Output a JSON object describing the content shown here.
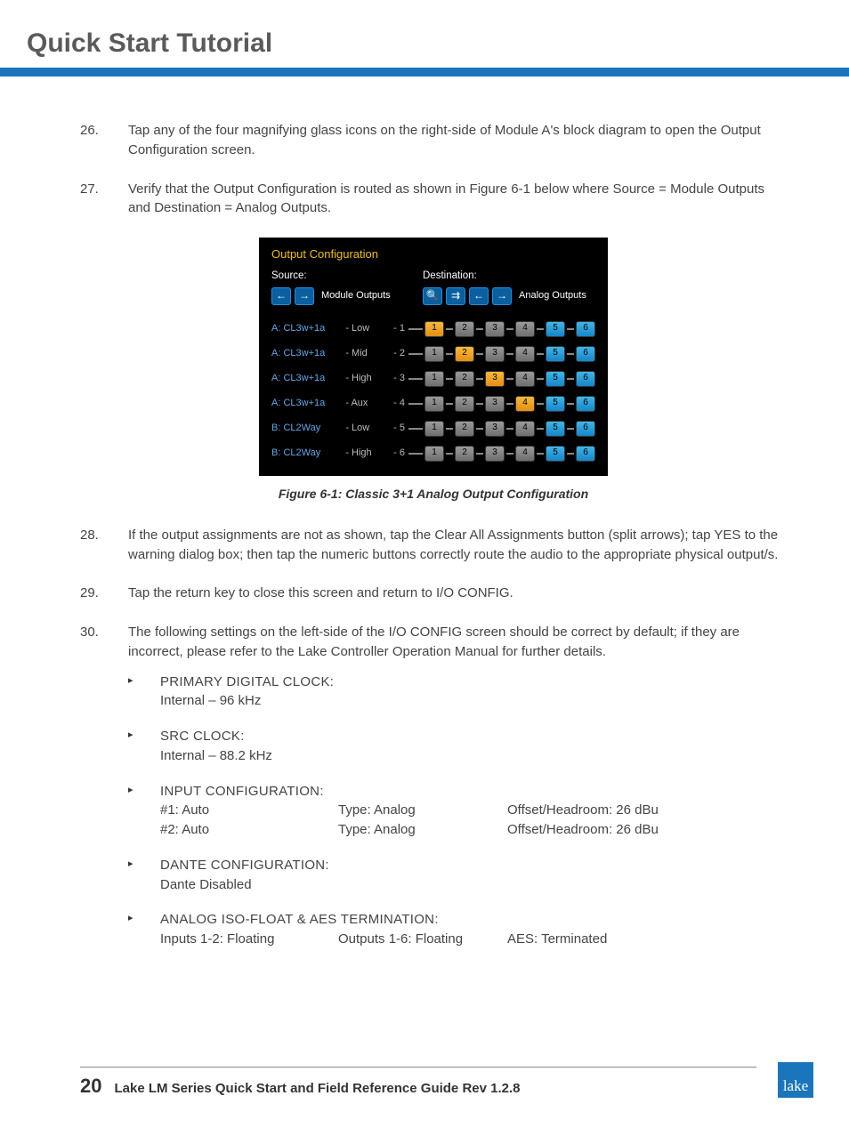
{
  "page": {
    "title": "Quick Start Tutorial",
    "number": "20",
    "footer_title": "Lake LM Series Quick Start and Field Reference Guide Rev 1.2.8",
    "logo_text": "lake"
  },
  "steps": [
    {
      "num": "26.",
      "text": "Tap any of the four magnifying glass icons on the right-side of Module A's block diagram to open the Output Configuration screen."
    },
    {
      "num": "27.",
      "text": "Verify that the Output Configuration is routed as shown in Figure 6-1 below where Source = Module Outputs and Destination = Analog Outputs."
    },
    {
      "num": "28.",
      "text": "If the output assignments are not as shown, tap the Clear All Assignments button (split arrows); tap YES to the warning dialog box; then tap the numeric buttons correctly route the audio to the appropriate physical output/s."
    },
    {
      "num": "29.",
      "text": "Tap the return key to close this screen and return to I/O CONFIG."
    },
    {
      "num": "30.",
      "text": "The following settings on the left-side of the I/O CONFIG screen should be correct by default; if they are incorrect, please refer to the Lake Controller Operation Manual for further details."
    }
  ],
  "figure": {
    "title": "Output Configuration",
    "source_label": "Source:",
    "dest_label": "Destination:",
    "source_text": "Module Outputs",
    "dest_text": "Analog Outputs",
    "caption": "Figure 6-1: Classic 3+1 Analog Output Configuration",
    "rows": [
      {
        "name": "A: CL3w+1a",
        "band": "- Low",
        "idx": "- 1",
        "cells": [
          "o",
          "g",
          "g",
          "g",
          "c",
          "c"
        ]
      },
      {
        "name": "A: CL3w+1a",
        "band": "- Mid",
        "idx": "- 2",
        "cells": [
          "g",
          "o",
          "g",
          "g",
          "c",
          "c"
        ]
      },
      {
        "name": "A: CL3w+1a",
        "band": "- High",
        "idx": "- 3",
        "cells": [
          "g",
          "g",
          "o",
          "g",
          "c",
          "c"
        ]
      },
      {
        "name": "A: CL3w+1a",
        "band": "- Aux",
        "idx": "- 4",
        "cells": [
          "g",
          "g",
          "g",
          "o",
          "c",
          "c"
        ]
      },
      {
        "name": "B: CL2Way",
        "band": "- Low",
        "idx": "- 5",
        "cells": [
          "g",
          "g",
          "g",
          "g",
          "c",
          "c"
        ]
      },
      {
        "name": "B: CL2Way",
        "band": "- High",
        "idx": "- 6",
        "cells": [
          "g",
          "g",
          "g",
          "g",
          "c",
          "c"
        ]
      }
    ]
  },
  "sublist": [
    {
      "heading": "PRIMARY DIGITAL CLOCK:",
      "lines": [
        "Internal – 96 kHz"
      ]
    },
    {
      "heading": "SRC CLOCK:",
      "lines": [
        "Internal – 88.2 kHz"
      ]
    },
    {
      "heading": "INPUT CONFIGURATION:",
      "cfg": [
        {
          "c1": "#1: Auto",
          "c2": "Type: Analog",
          "c3": "Offset/Headroom: 26 dBu"
        },
        {
          "c1": "#2: Auto",
          "c2": "Type: Analog",
          "c3": "Offset/Headroom: 26 dBu"
        }
      ]
    },
    {
      "heading": "DANTE CONFIGURATION:",
      "lines": [
        "Dante Disabled"
      ]
    },
    {
      "heading": "ANALOG ISO-FLOAT & AES TERMINATION:",
      "cfg": [
        {
          "c1": "Inputs 1-2: Floating",
          "c2": "Outputs 1-6: Floating",
          "c3": "AES: Terminated"
        }
      ]
    }
  ]
}
